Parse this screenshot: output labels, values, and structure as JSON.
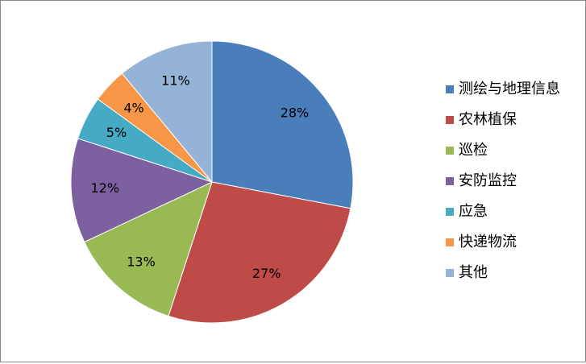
{
  "chart_data": {
    "type": "pie",
    "categories": [
      "测绘与地理信息",
      "农林植保",
      "巡检",
      "安防监控",
      "应急",
      "快递物流",
      "其他"
    ],
    "values": [
      28,
      27,
      13,
      12,
      5,
      4,
      11
    ],
    "value_labels": [
      "28%",
      "27%",
      "13%",
      "12%",
      "5%",
      "4%",
      "11%"
    ],
    "colors": [
      "#4a7ebb",
      "#be4b48",
      "#98b954",
      "#7d60a0",
      "#46aac5",
      "#f79646",
      "#95b3d7"
    ],
    "legend": "right"
  }
}
